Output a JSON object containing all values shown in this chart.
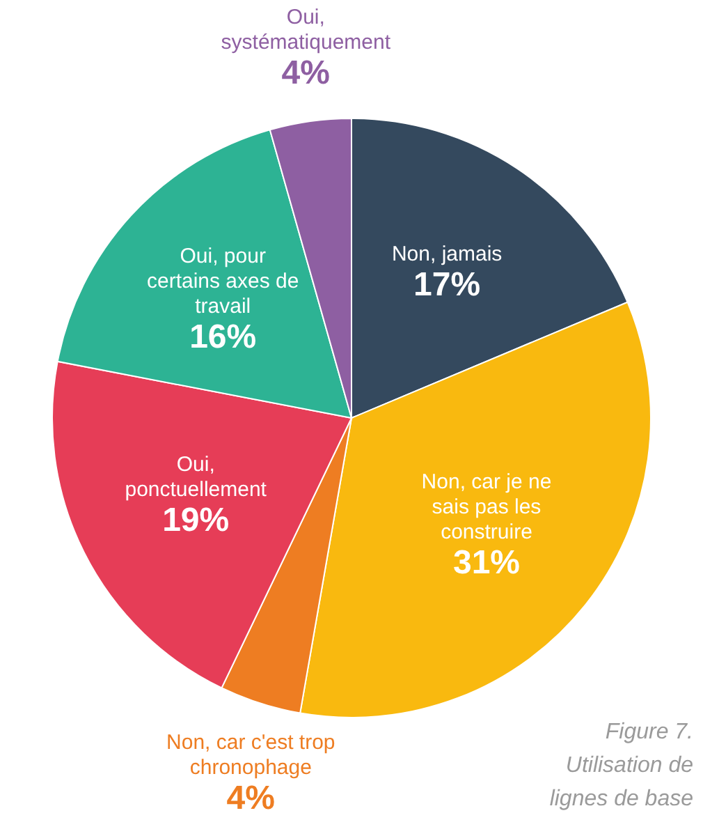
{
  "chart_data": {
    "type": "pie",
    "categories": [
      "Non, jamais",
      "Non, car je ne sais pas les construire",
      "Non, car c'est trop chronophage",
      "Oui, ponctuellement",
      "Oui, pour certains axes de travail",
      "Oui, systématiquement"
    ],
    "values": [
      17,
      31,
      4,
      19,
      16,
      4
    ],
    "value_labels": [
      "17%",
      "31%",
      "4%",
      "19%",
      "16%",
      "4%"
    ],
    "colors": [
      "#34495e",
      "#f9b90f",
      "#ee7d22",
      "#e63d57",
      "#2db394",
      "#8e5fa2"
    ],
    "annotations": [
      "Figure 7.",
      "Utilisation de lignes de base"
    ]
  }
}
